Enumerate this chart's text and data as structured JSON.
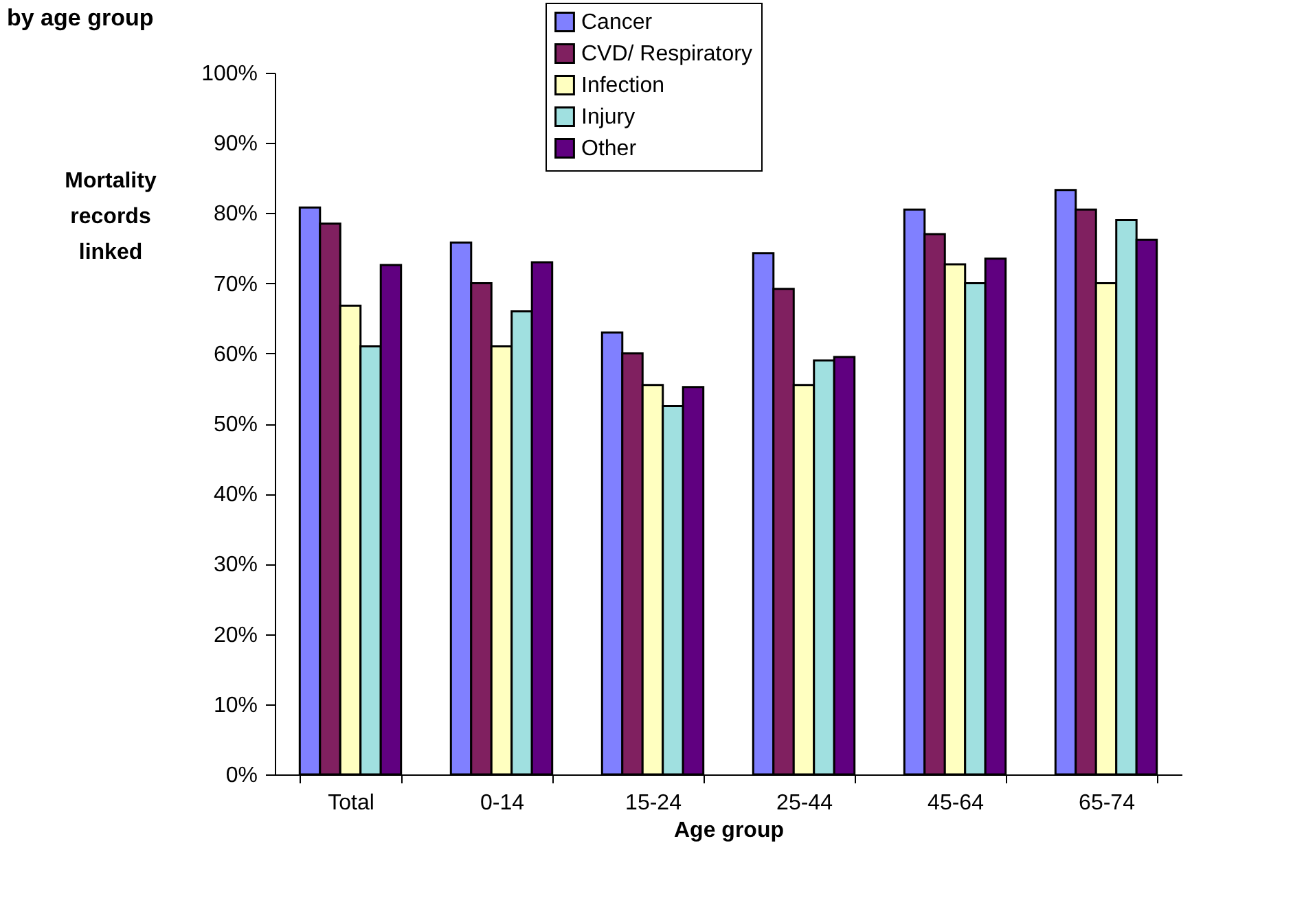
{
  "chart_data": {
    "type": "bar",
    "title": "by age group",
    "xlabel": "Age group",
    "ylabel": "Mortality records linked",
    "categories": [
      "Total",
      "0-14",
      "15-24",
      "25-44",
      "45-64",
      "65-74"
    ],
    "series": [
      {
        "name": "Cancer",
        "color": "#8080ff",
        "values": [
          80.8,
          75.8,
          63,
          74.3,
          80.5,
          83.3
        ]
      },
      {
        "name": "CVD/ Respiratory",
        "color": "#802060",
        "values": [
          78.5,
          70,
          60,
          69.2,
          77,
          80.5
        ]
      },
      {
        "name": "Infection",
        "color": "#ffffc0",
        "values": [
          66.8,
          61,
          55.5,
          55.5,
          72.7,
          70
        ]
      },
      {
        "name": "Injury",
        "color": "#a0e0e0",
        "values": [
          61,
          66,
          52.5,
          59,
          70,
          79
        ]
      },
      {
        "name": "Other",
        "color": "#600080",
        "values": [
          72.6,
          73,
          55.2,
          59.5,
          73.5,
          76.2
        ]
      }
    ],
    "ylim": [
      0,
      100
    ],
    "yticks": [
      {
        "value": 0,
        "label": "0%"
      },
      {
        "value": 10,
        "label": "10%"
      },
      {
        "value": 20,
        "label": "20%"
      },
      {
        "value": 30,
        "label": "30%"
      },
      {
        "value": 40,
        "label": "40%"
      },
      {
        "value": 50,
        "label": "50%"
      },
      {
        "value": 60,
        "label": "60%"
      },
      {
        "value": 70,
        "label": "70%"
      },
      {
        "value": 80,
        "label": "80%"
      },
      {
        "value": 90,
        "label": "90%"
      },
      {
        "value": 100,
        "label": "100%"
      }
    ],
    "grid": false,
    "legend": "top"
  }
}
